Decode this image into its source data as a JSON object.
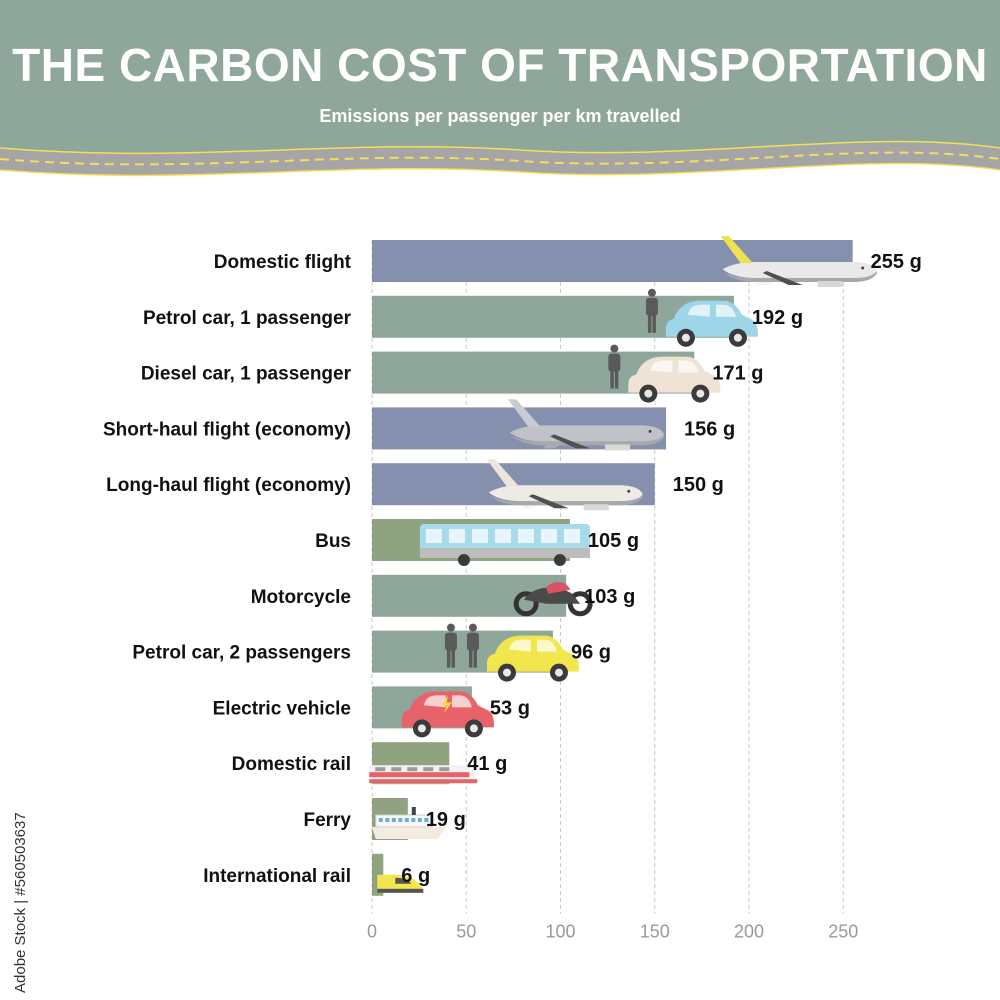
{
  "header": {
    "title": "THE CARBON COST OF TRANSPORTATION",
    "subtitle": "Emissions per passenger per km travelled",
    "colors": {
      "banner": "#8fa69a",
      "road": "#a5a5a5",
      "road_line": "#f2df5a"
    }
  },
  "stock_id": "Adobe Stock | #560503637",
  "chart_data": {
    "type": "bar",
    "orientation": "horizontal",
    "title": "THE CARBON COST OF TRANSPORTATION",
    "subtitle": "Emissions per passenger per km travelled",
    "categories": [
      "Domestic flight",
      "Petrol car, 1 passenger",
      "Diesel car, 1 passenger",
      "Short-haul flight (economy)",
      "Long-haul flight (economy)",
      "Bus",
      "Motorcycle",
      "Petrol car, 2 passengers",
      "Electric vehicle",
      "Domestic rail",
      "Ferry",
      "International rail"
    ],
    "values": [
      255,
      192,
      171,
      156,
      150,
      105,
      103,
      96,
      53,
      41,
      19,
      6
    ],
    "value_labels": [
      "255 g",
      "192 g",
      "171 g",
      "156 g",
      "150 g",
      "105 g",
      "103 g",
      "96 g",
      "53 g",
      "41 g",
      "19 g",
      "6 g"
    ],
    "icons": [
      "yellow-plane-icon",
      "blue-car-icon",
      "beige-car-icon",
      "grey-plane-icon",
      "white-plane-icon",
      "bus-icon",
      "motorcycle-icon",
      "yellow-car-icon",
      "electric-car-icon",
      "train-icon",
      "ferry-icon",
      "high-speed-train-icon"
    ],
    "bar_colors": [
      "#8590ae",
      "#8fa69a",
      "#8fa69a",
      "#8590ae",
      "#8590ae",
      "#8fa380",
      "#8fa69a",
      "#8fa69a",
      "#8fa69a",
      "#8fa380",
      "#8fa380",
      "#8fa380"
    ],
    "xlim": [
      0,
      255
    ],
    "xticks": [
      0,
      50,
      100,
      150,
      200,
      250
    ],
    "grid": true,
    "legend": "none"
  }
}
